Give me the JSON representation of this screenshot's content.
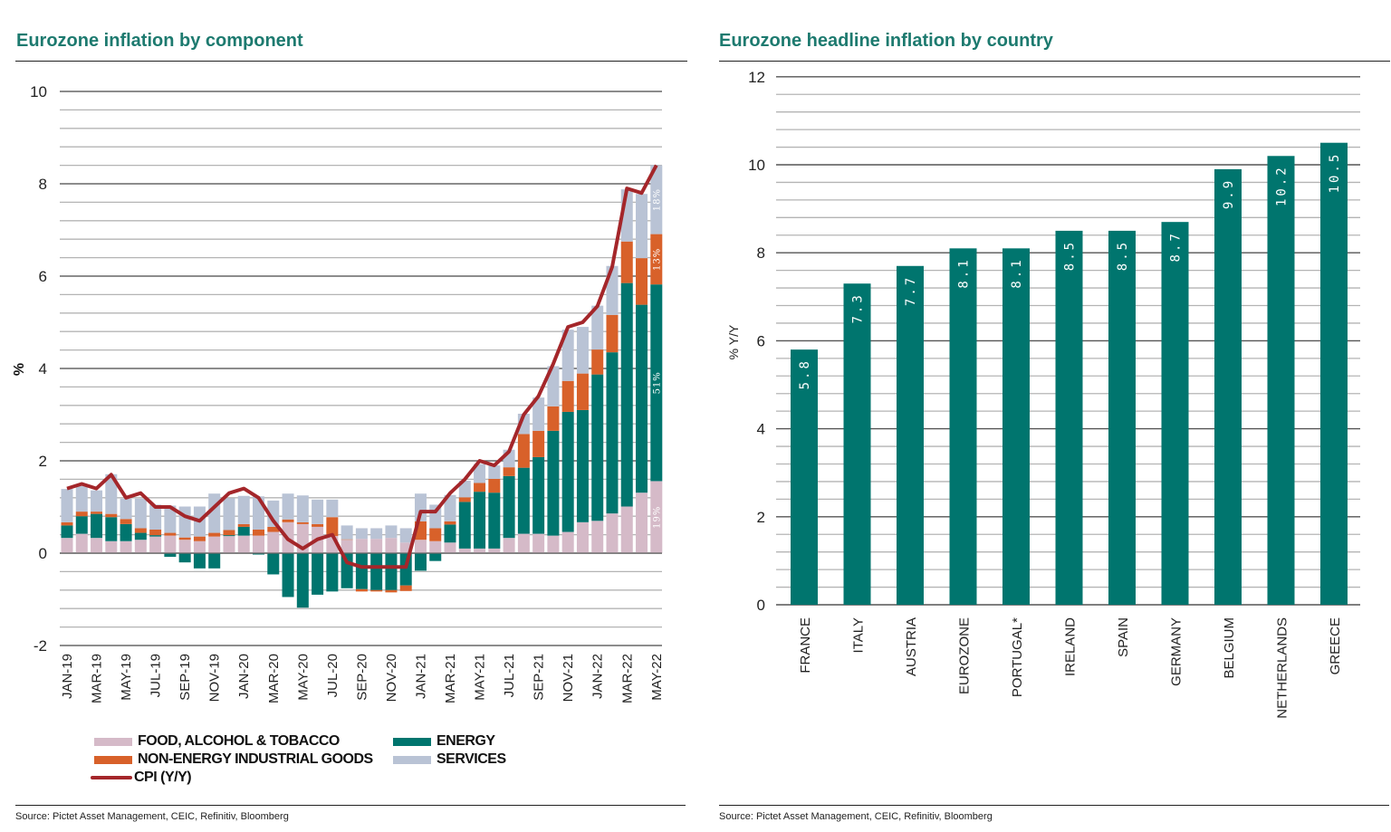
{
  "colors": {
    "food": "#d5bac8",
    "energy": "#00756e",
    "neig": "#d8612a",
    "services": "#b9c3d5",
    "cpi": "#a4262a",
    "title": "#1d7a6f"
  },
  "left": {
    "title": "Eurozone inflation by component",
    "source": "Source: Pictet Asset Management, CEIC, Refinitiv, Bloomberg",
    "legend": {
      "food": "FOOD, ALCOHOL & TOBACCO",
      "energy": "ENERGY",
      "neig": "NON-ENERGY INDUSTRIAL GOODS",
      "services": "SERVICES",
      "cpi": "CPI (Y/Y)"
    }
  },
  "right": {
    "title": "Eurozone headline inflation by country",
    "source": "Source: Pictet Asset Management, CEIC, Refinitiv, Bloomberg"
  },
  "chart_data": [
    {
      "type": "bar",
      "stacked": true,
      "title": "Eurozone inflation by component",
      "ylabel": "%",
      "ylim": [
        -2,
        10
      ],
      "yticks": [
        "10",
        "8",
        "6",
        "4",
        "2",
        "0",
        "-2"
      ],
      "grid": true,
      "legend_position": "bottom",
      "categories": [
        "JAN-19",
        "FEB-19",
        "MAR-19",
        "APR-19",
        "MAY-19",
        "JUN-19",
        "JUL-19",
        "AUG-19",
        "SEP-19",
        "OCT-19",
        "NOV-19",
        "DEC-19",
        "JAN-20",
        "FEB-20",
        "MAR-20",
        "APR-20",
        "MAY-20",
        "JUN-20",
        "JUL-20",
        "AUG-20",
        "SEP-20",
        "OCT-20",
        "NOV-20",
        "DEC-20",
        "JAN-21",
        "FEB-21",
        "MAR-21",
        "APR-21",
        "MAY-21",
        "JUN-21",
        "JUL-21",
        "AUG-21",
        "SEP-21",
        "OCT-21",
        "NOV-21",
        "DEC-21",
        "JAN-22",
        "FEB-22",
        "MAR-22",
        "APR-22",
        "MAY-22"
      ],
      "xtick_labels": [
        "JAN-19",
        "MAR-19",
        "MAY-19",
        "JUL-19",
        "SEP-19",
        "NOV-19",
        "JAN-20",
        "MAR-20",
        "MAY-20",
        "JUL-20",
        "SEP-20",
        "NOV-20",
        "JAN-21",
        "MAR-21",
        "MAY-21",
        "JUL-21",
        "SEP-21",
        "NOV-21",
        "JAN-22",
        "MAR-22",
        "MAY-22"
      ],
      "series": [
        {
          "name": "FOOD, ALCOHOL & TOBACCO",
          "key": "food",
          "values": [
            0.33,
            0.42,
            0.33,
            0.26,
            0.26,
            0.29,
            0.36,
            0.38,
            0.29,
            0.26,
            0.36,
            0.37,
            0.38,
            0.38,
            0.46,
            0.67,
            0.63,
            0.57,
            0.37,
            0.29,
            0.31,
            0.31,
            0.33,
            0.23,
            0.29,
            0.26,
            0.23,
            0.1,
            0.1,
            0.1,
            0.33,
            0.42,
            0.42,
            0.38,
            0.46,
            0.67,
            0.7,
            0.86,
            1.01,
            1.31,
            1.56
          ]
        },
        {
          "name": "ENERGY",
          "key": "energy",
          "values": [
            0.27,
            0.38,
            0.52,
            0.52,
            0.37,
            0.15,
            0.03,
            -0.08,
            -0.2,
            -0.33,
            -0.33,
            0.02,
            0.19,
            -0.03,
            -0.46,
            -0.95,
            -1.18,
            -0.9,
            -0.83,
            -0.76,
            -0.78,
            -0.8,
            -0.8,
            -0.7,
            -0.38,
            -0.17,
            0.39,
            1.01,
            1.23,
            1.21,
            1.34,
            1.43,
            1.66,
            2.27,
            2.6,
            2.43,
            3.17,
            3.49,
            4.84,
            4.07,
            4.26
          ]
        },
        {
          "name": "NON-ENERGY INDUSTRIAL GOODS",
          "key": "neig",
          "values": [
            0.07,
            0.1,
            0.05,
            0.07,
            0.11,
            0.1,
            0.12,
            0.06,
            0.05,
            0.1,
            0.08,
            0.11,
            0.06,
            0.13,
            0.11,
            0.06,
            0.04,
            0.06,
            0.41,
            0.01,
            -0.05,
            -0.03,
            -0.05,
            -0.12,
            0.4,
            0.28,
            0.07,
            0.1,
            0.19,
            0.3,
            0.19,
            0.73,
            0.57,
            0.53,
            0.67,
            0.79,
            0.54,
            0.81,
            0.9,
            1.01,
            1.09
          ]
        },
        {
          "name": "SERVICES",
          "key": "services",
          "values": [
            0.72,
            0.57,
            0.46,
            0.86,
            0.44,
            0.64,
            0.54,
            0.59,
            0.67,
            0.65,
            0.85,
            0.69,
            0.61,
            0.72,
            0.57,
            0.56,
            0.58,
            0.53,
            0.38,
            0.3,
            0.23,
            0.23,
            0.27,
            0.31,
            0.6,
            0.51,
            0.57,
            0.36,
            0.41,
            0.29,
            0.38,
            0.44,
            0.72,
            0.87,
            1.11,
            1.01,
            0.95,
            1.06,
            1.13,
            1.39,
            1.49
          ]
        },
        {
          "name": "CPI (Y/Y)",
          "key": "cpi",
          "type": "line",
          "values": [
            1.4,
            1.5,
            1.4,
            1.7,
            1.2,
            1.3,
            1.0,
            1.0,
            0.8,
            0.7,
            1.0,
            1.3,
            1.4,
            1.2,
            0.7,
            0.3,
            0.1,
            0.3,
            0.4,
            -0.2,
            -0.3,
            -0.3,
            -0.3,
            -0.3,
            0.9,
            0.9,
            1.3,
            1.6,
            2.0,
            1.9,
            2.2,
            3.0,
            3.4,
            4.1,
            4.9,
            5.0,
            5.35,
            6.2,
            7.9,
            7.8,
            8.4
          ]
        }
      ],
      "annotations": [
        {
          "category": "MAY-22",
          "series": "food",
          "text": "19%"
        },
        {
          "category": "MAY-22",
          "series": "energy",
          "text": "51%"
        },
        {
          "category": "MAY-22",
          "series": "neig",
          "text": "13%"
        },
        {
          "category": "MAY-22",
          "series": "services",
          "text": "18%"
        }
      ]
    },
    {
      "type": "bar",
      "title": "Eurozone headline inflation by country",
      "ylabel": "% Y/Y",
      "ylim": [
        0,
        12
      ],
      "yticks": [
        "12",
        "10",
        "8",
        "6",
        "4",
        "2",
        "0"
      ],
      "grid": true,
      "categories": [
        "FRANCE",
        "ITALY",
        "AUSTRIA",
        "EUROZONE",
        "PORTUGAL*",
        "IRELAND",
        "SPAIN",
        "GERMANY",
        "BELGIUM",
        "NETHERLANDS",
        "GREECE"
      ],
      "values": [
        5.8,
        7.3,
        7.7,
        8.1,
        8.1,
        8.5,
        8.5,
        8.7,
        9.9,
        10.2,
        10.5
      ],
      "data_labels": [
        "5.8",
        "7.3",
        "7.7",
        "8.1",
        "8.1",
        "8.5",
        "8.5",
        "8.7",
        "9.9",
        "10.2",
        "10.5"
      ]
    }
  ]
}
